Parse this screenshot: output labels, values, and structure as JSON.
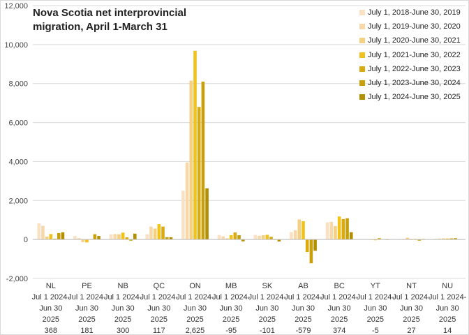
{
  "chart_data": {
    "type": "bar",
    "title": "Nova Scotia net interprovincial migration, April 1-March 31",
    "xlabel": "",
    "ylabel": "",
    "ylim": [
      -2000,
      12000
    ],
    "yticks": [
      -2000,
      0,
      2000,
      4000,
      6000,
      8000,
      10000,
      12000
    ],
    "ytick_labels": [
      "-2,000",
      "0",
      "2,000",
      "4,000",
      "6,000",
      "8,000",
      "10,000",
      "12,000"
    ],
    "grid": "horizontal",
    "legend_position": "top-right",
    "categories": [
      {
        "name": "NL",
        "line1": "Jul 1 2024-",
        "line2": "Jun 30",
        "line3": "2025",
        "value_label": "368"
      },
      {
        "name": "PE",
        "line1": "Jul 1 2024-",
        "line2": "Jun 30",
        "line3": "2025",
        "value_label": "181"
      },
      {
        "name": "NB",
        "line1": "Jul 1 2024-",
        "line2": "Jun 30",
        "line3": "2025",
        "value_label": "300"
      },
      {
        "name": "QC",
        "line1": "Jul 1 2024-",
        "line2": "Jun 30",
        "line3": "2025",
        "value_label": "117"
      },
      {
        "name": "ON",
        "line1": "Jul 1 2024-",
        "line2": "Jun 30",
        "line3": "2025",
        "value_label": "2,625"
      },
      {
        "name": "MB",
        "line1": "Jul 1 2024-",
        "line2": "Jun 30",
        "line3": "2025",
        "value_label": "-95"
      },
      {
        "name": "SK",
        "line1": "Jul 1 2024-",
        "line2": "Jun 30",
        "line3": "2025",
        "value_label": "-101"
      },
      {
        "name": "AB",
        "line1": "Jul 1 2024-",
        "line2": "Jun 30",
        "line3": "2025",
        "value_label": "-579"
      },
      {
        "name": "BC",
        "line1": "Jul 1 2024-",
        "line2": "Jun 30",
        "line3": "2025",
        "value_label": "374"
      },
      {
        "name": "YT",
        "line1": "Jul 1 2024-",
        "line2": "Jun 30",
        "line3": "2025",
        "value_label": "-5"
      },
      {
        "name": "NT",
        "line1": "Jul 1 2024-",
        "line2": "Jun 30",
        "line3": "2025",
        "value_label": "27"
      },
      {
        "name": "NU",
        "line1": "Jul 1 2024-",
        "line2": "Jun 30",
        "line3": "2025",
        "value_label": "14"
      }
    ],
    "series": [
      {
        "name": "July 1, 2018-June 30, 2019",
        "color": "#fbe1c4",
        "values": [
          830,
          180,
          270,
          270,
          2500,
          230,
          230,
          380,
          880,
          0,
          30,
          40
        ]
      },
      {
        "name": "July 1, 2019-June 30, 2020",
        "color": "#f8d8a8",
        "values": [
          700,
          70,
          280,
          660,
          3950,
          160,
          190,
          470,
          910,
          10,
          0,
          50
        ]
      },
      {
        "name": "July 1, 2020-June 30, 2021",
        "color": "#f5cf82",
        "values": [
          150,
          -130,
          270,
          560,
          8150,
          60,
          220,
          1030,
          690,
          0,
          90,
          60
        ]
      },
      {
        "name": "July 1, 2021-June 30, 2022",
        "color": "#f2c21c",
        "values": [
          280,
          -150,
          350,
          790,
          9680,
          220,
          240,
          940,
          1180,
          -40,
          -10,
          50
        ]
      },
      {
        "name": "July 1, 2022-June 30, 2023",
        "color": "#d9aa12",
        "values": [
          40,
          20,
          110,
          660,
          6800,
          360,
          140,
          -640,
          1050,
          70,
          30,
          60
        ]
      },
      {
        "name": "July 1, 2023-June 30, 2024",
        "color": "#c7a00c",
        "values": [
          330,
          270,
          -60,
          120,
          8100,
          220,
          -20,
          -1220,
          1090,
          10,
          -60,
          70
        ]
      },
      {
        "name": "July 1, 2024-June 30, 2025",
        "color": "#b38f00",
        "values": [
          368,
          181,
          300,
          117,
          2625,
          -95,
          -101,
          -579,
          374,
          -5,
          27,
          14
        ]
      }
    ]
  }
}
